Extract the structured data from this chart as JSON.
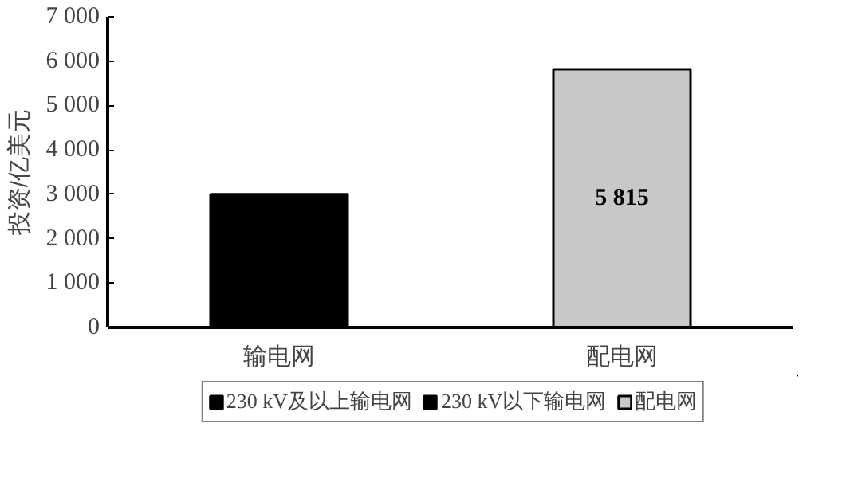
{
  "chart_data": {
    "type": "bar",
    "ylabel": "投资/亿美元",
    "categories": [
      "输电网",
      "配电网"
    ],
    "series": [
      {
        "name": "230 kV及以上输电网",
        "color": "#000000",
        "values": [
          3000,
          null
        ]
      },
      {
        "name": "230 kV以下输电网",
        "color": "#000000",
        "values": [
          null,
          null
        ]
      },
      {
        "name": "配电网",
        "color": "#c8c8c8",
        "values": [
          null,
          5815
        ],
        "value_labels": [
          null,
          "5 815"
        ]
      }
    ],
    "ylim": [
      0,
      7000
    ],
    "yticks": [
      0,
      {
        "value": 1000,
        "label": "1 000"
      },
      {
        "value": 2000,
        "label": "2 000"
      },
      {
        "value": 3000,
        "label": "3 000"
      },
      {
        "value": 4000,
        "label": "4 000"
      },
      {
        "value": 5000,
        "label": "5 000"
      },
      {
        "value": 6000,
        "label": "6 000"
      },
      {
        "value": 7000,
        "label": "7 000"
      }
    ],
    "grid": false,
    "legend": "bottom"
  }
}
